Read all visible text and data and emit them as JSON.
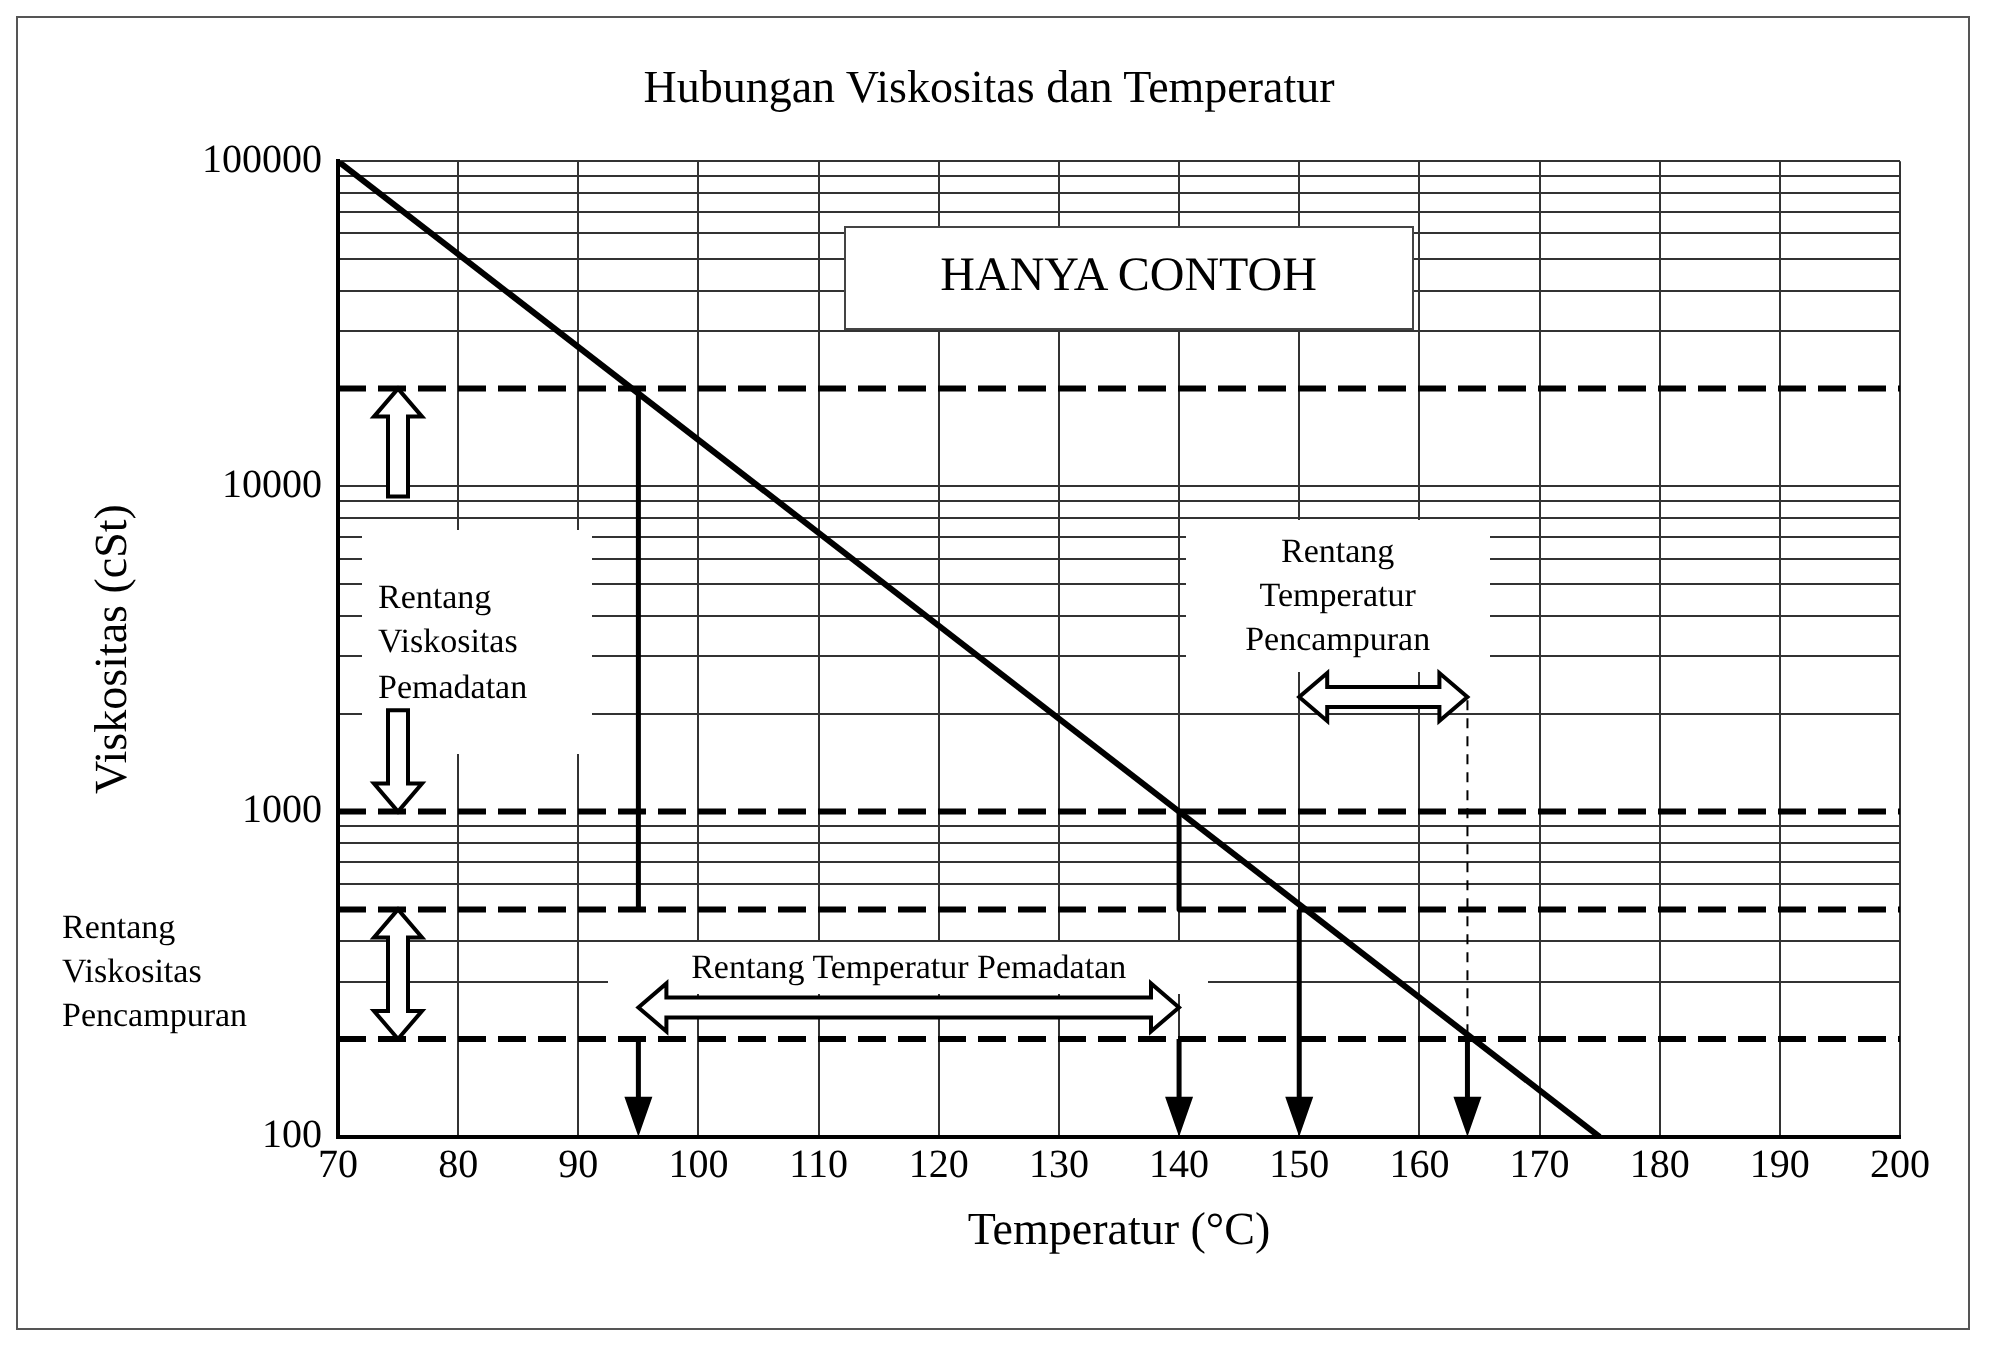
{
  "chart_data": {
    "type": "line",
    "title": "Hubungan Viskositas dan Temperatur",
    "xlabel": "Temperatur (°C)",
    "ylabel": "Viskositas (cSt)",
    "log": "y",
    "grid": true,
    "legend": false,
    "marker": "none",
    "xlim": [
      70,
      200
    ],
    "xticks": [
      70,
      80,
      90,
      100,
      110,
      120,
      130,
      140,
      150,
      160,
      170,
      180,
      190,
      200
    ],
    "ylim": [
      100,
      100000
    ],
    "yticks": [
      100,
      {
        "value": 300,
        "label": null
      },
      {
        "value": 400,
        "label": null
      },
      {
        "value": 600,
        "label": null
      },
      {
        "value": 700,
        "label": null
      },
      {
        "value": 800,
        "label": null
      },
      {
        "value": 900,
        "label": null
      },
      1000,
      {
        "value": 2000,
        "label": null
      },
      {
        "value": 3000,
        "label": null
      },
      {
        "value": 4000,
        "label": null
      },
      {
        "value": 5000,
        "label": null
      },
      {
        "value": 6000,
        "label": null
      },
      {
        "value": 7000,
        "label": null
      },
      {
        "value": 8000,
        "label": null
      },
      {
        "value": 9000,
        "label": null
      },
      10000,
      {
        "value": 30000,
        "label": null
      },
      {
        "value": 40000,
        "label": null
      },
      {
        "value": 50000,
        "label": null
      },
      {
        "value": 60000,
        "label": null
      },
      {
        "value": 70000,
        "label": null
      },
      {
        "value": 80000,
        "label": null
      },
      {
        "value": 90000,
        "label": null
      },
      100000
    ],
    "series": [
      {
        "color": "#000000",
        "x": [
          70,
          175
        ],
        "values": [
          100000,
          100
        ]
      },
      {
        "color": "#000000",
        "x": [
          95,
          95
        ],
        "values": [
          20000,
          500
        ]
      },
      {
        "color": "#000000",
        "x": [
          140,
          140
        ],
        "values": [
          1000,
          500
        ]
      },
      {
        "color": "#000000",
        "x": [
          164,
          164
        ],
        "values": [
          2200,
          200
        ],
        "line_style": "dashed"
      }
    ],
    "ref_lines": [
      {
        "axis": "y",
        "value": 20000,
        "line_style": "dashed",
        "color": "#000000"
      },
      {
        "axis": "y",
        "value": 1000,
        "line_style": "dashed",
        "color": "#000000"
      },
      {
        "axis": "y",
        "value": 500,
        "line_style": "dashed",
        "color": "#000000"
      },
      {
        "axis": "y",
        "value": 200,
        "line_style": "dashed",
        "color": "#000000"
      }
    ],
    "annotations": [
      "HANYA CONTOH",
      "Rentang Viskositas Pemadatan",
      "Rentang Temperatur Pencampuran",
      "Rentang Temperatur Pemadatan",
      "Rentang Viskositas Pencampuran"
    ]
  }
}
